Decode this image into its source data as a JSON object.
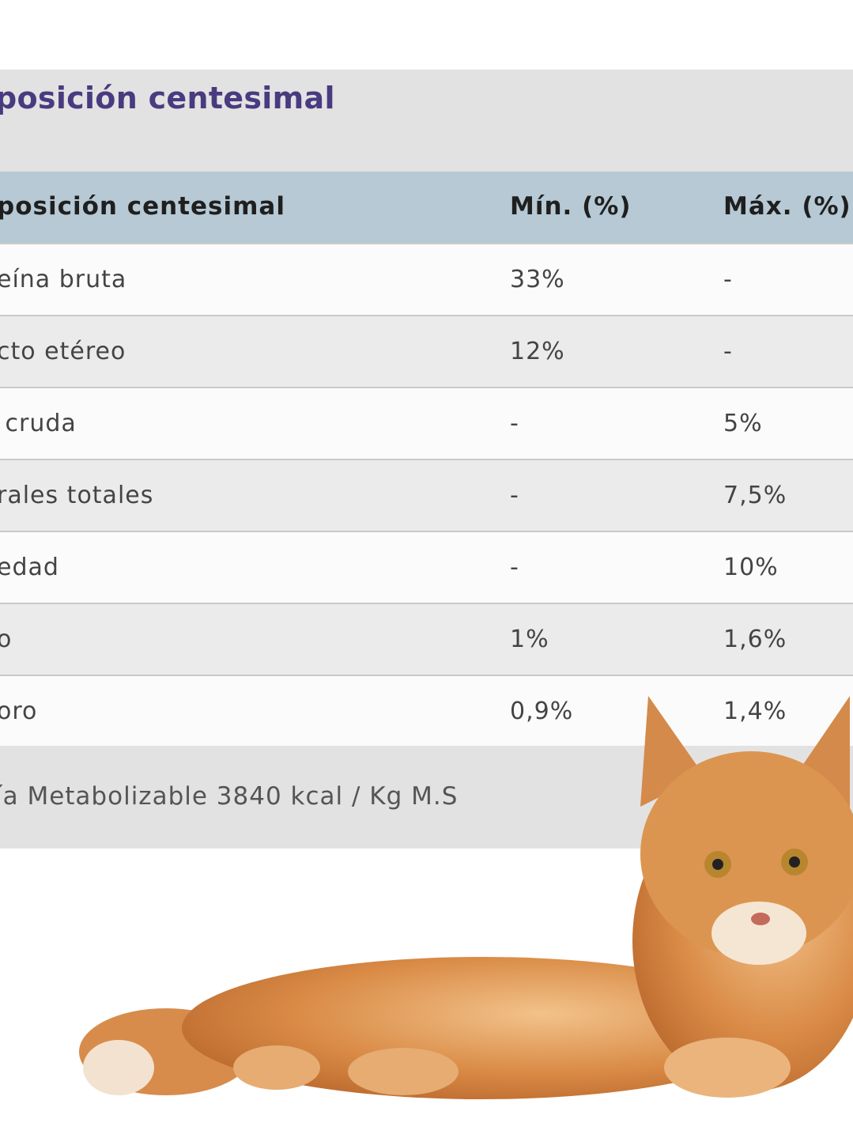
{
  "section_title": "posición centesimal",
  "table": {
    "headers": [
      "posición centesimal",
      "Mín. (%)",
      "Máx. (%)"
    ],
    "rows": [
      [
        "eína bruta",
        "33%",
        "-"
      ],
      [
        "cto etéreo",
        "12%",
        "-"
      ],
      [
        " cruda",
        "-",
        "5%"
      ],
      [
        "rales totales",
        "-",
        "7,5%"
      ],
      [
        "edad",
        "-",
        "10%"
      ],
      [
        "o",
        "1%",
        "1,6%"
      ],
      [
        "oro",
        "0,9%",
        "1,4%"
      ]
    ]
  },
  "footer_note": "ía Metabolizable 3840 kcal / Kg M.S",
  "image": {
    "subject": "orange-tabby-cat-lying"
  },
  "colors": {
    "title": "#4a3a80",
    "header_bg": "#b6c9d4",
    "band_bg": "#e2e2e2"
  }
}
